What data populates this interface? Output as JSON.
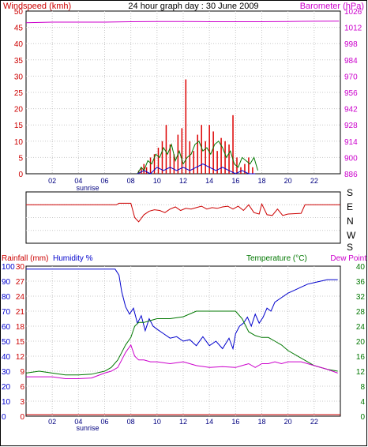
{
  "header": {
    "title": "24 hour graph day : 30 June 2009",
    "left_label": "Windspeed (kmh)",
    "right_label": "Barometer (hPa)",
    "left_color": "#cc0000",
    "right_color": "#cc00cc"
  },
  "wind_dir": {
    "labels": [
      "S",
      "E",
      "N",
      "W",
      "S"
    ],
    "color": "#cc0000"
  },
  "bottom_header": {
    "rainfall_label": "Rainfall (mm)",
    "humidity_label": "Humidity %",
    "temperature_label": "Temperature (°C)",
    "dewpoint_label": "Dew Point",
    "rain_color": "#cc0000",
    "humidity_color": "#0000cc",
    "temp_color": "#007700",
    "dew_color": "#cc00cc"
  },
  "chart_data": [
    {
      "id": "wind_baro",
      "type": "bar",
      "title": "24 hour graph day : 30 June 2009",
      "x_ticks": [
        "02",
        "04",
        "06",
        "08",
        "10",
        "12",
        "14",
        "16",
        "18",
        "20",
        "22"
      ],
      "x_sublabel": "sunrise",
      "y_left": {
        "label": "Windspeed (kmh)",
        "ticks": [
          "0",
          "5",
          "10",
          "15",
          "20",
          "25",
          "30",
          "35",
          "40",
          "45",
          "50"
        ],
        "ylim": [
          0,
          50
        ]
      },
      "y_right": {
        "label": "Barometer (hPa)",
        "ticks": [
          "886",
          "900",
          "914",
          "928",
          "942",
          "956",
          "970",
          "984",
          "998",
          "1012",
          "1026"
        ],
        "ylim": [
          886,
          1026
        ]
      },
      "series": [
        {
          "name": "Windspeed (kmh)",
          "type": "bar",
          "x": [
            8.6,
            8.8,
            9.0,
            9.2,
            9.5,
            9.8,
            10.1,
            10.4,
            10.7,
            11.0,
            11.3,
            11.6,
            11.9,
            12.2,
            12.5,
            12.8,
            13.1,
            13.4,
            13.7,
            14.0,
            14.3,
            14.6,
            14.9,
            15.2,
            15.5,
            15.8,
            16.1,
            16.4,
            16.7,
            17.0,
            17.3
          ],
          "values": [
            1,
            2,
            3,
            2,
            5,
            6,
            8,
            10,
            15,
            9,
            6,
            12,
            14,
            29,
            10,
            7,
            12,
            15,
            10,
            15,
            13,
            7,
            11,
            10,
            9,
            18,
            5,
            2,
            3,
            5,
            2
          ]
        },
        {
          "name": "Gust",
          "type": "line",
          "x": [
            8.5,
            8.8,
            9.0,
            9.3,
            9.6,
            9.9,
            10.2,
            10.5,
            10.8,
            11.1,
            11.4,
            11.7,
            12.0,
            12.3,
            12.6,
            12.9,
            13.2,
            13.5,
            13.8,
            14.1,
            14.4,
            14.7,
            15.0,
            15.3,
            15.6,
            15.9,
            16.2,
            16.5,
            16.8,
            17.1,
            17.4,
            17.7
          ],
          "values": [
            0,
            2,
            1,
            4,
            3,
            6,
            5,
            8,
            6,
            9,
            4,
            7,
            3,
            5,
            6,
            9,
            10,
            7,
            8,
            6,
            9,
            10,
            8,
            5,
            7,
            3,
            2,
            5,
            4,
            3,
            5,
            1
          ]
        },
        {
          "name": "Average",
          "type": "line",
          "x": [
            8.5,
            9.0,
            9.5,
            10.0,
            10.5,
            11.0,
            11.5,
            12.0,
            12.5,
            13.0,
            13.5,
            14.0,
            14.5,
            15.0,
            15.5,
            16.0,
            16.5,
            17.0,
            17.5
          ],
          "values": [
            0,
            1,
            0,
            2,
            1,
            2,
            1,
            2,
            1,
            2,
            3,
            2,
            1,
            2,
            1,
            0,
            1,
            0,
            0
          ]
        },
        {
          "name": "Barometer (hPa)",
          "type": "line",
          "x": [
            0,
            2,
            4,
            6,
            8,
            10,
            12,
            14,
            16,
            18,
            20,
            22,
            23.9
          ],
          "values": [
            1016,
            1016.5,
            1016.5,
            1016.5,
            1016.8,
            1017,
            1017,
            1016.8,
            1016.8,
            1016.8,
            1017,
            1017.2,
            1017.3
          ]
        }
      ]
    },
    {
      "id": "wind_direction",
      "type": "line",
      "x_ticks": [],
      "y_ticks": [
        "S",
        "E",
        "N",
        "W",
        "S"
      ],
      "series": [
        {
          "name": "Wind direction",
          "x": [
            0,
            6.9,
            7.1,
            8.0,
            8.3,
            8.6,
            9.0,
            9.4,
            9.8,
            10.2,
            10.6,
            11.0,
            11.4,
            11.8,
            12.2,
            12.6,
            13.0,
            13.4,
            13.8,
            14.2,
            14.6,
            15.0,
            15.4,
            15.8,
            16.2,
            16.6,
            17.0,
            17.4,
            17.8,
            18.0,
            18.4,
            18.8,
            19.2,
            19.6,
            20.0,
            21.0,
            21.3,
            24.0
          ],
          "values": [
            270,
            270,
            280,
            280,
            180,
            150,
            200,
            225,
            235,
            230,
            215,
            240,
            255,
            230,
            245,
            240,
            250,
            260,
            240,
            250,
            245,
            255,
            260,
            240,
            260,
            230,
            270,
            215,
            205,
            275,
            200,
            195,
            240,
            195,
            205,
            210,
            270,
            270
          ]
        }
      ]
    },
    {
      "id": "temp_hum_rain",
      "type": "line",
      "x_ticks": [
        "02",
        "04",
        "06",
        "08",
        "10",
        "12",
        "14",
        "16",
        "18",
        "20",
        "22"
      ],
      "x_sublabel": "sunrise",
      "y_left_rain": {
        "label": "Rainfall (mm)",
        "ticks": [
          "0",
          "3",
          "6",
          "9",
          "12",
          "15",
          "18",
          "21",
          "24",
          "27",
          "30"
        ],
        "ylim": [
          0,
          30
        ]
      },
      "y_left_humidity": {
        "label": "Humidity %",
        "ticks": [
          "0",
          "10",
          "20",
          "30",
          "40",
          "50",
          "60",
          "70",
          "80",
          "90",
          "100"
        ],
        "ylim": [
          0,
          100
        ]
      },
      "y_right_temp": {
        "label": "Temperature (°C)",
        "ticks": [
          "0",
          "4",
          "8",
          "12",
          "16",
          "20",
          "24",
          "28",
          "32",
          "36",
          "40"
        ],
        "ylim": [
          0,
          40
        ]
      },
      "series": [
        {
          "name": "Humidity %",
          "x": [
            0,
            1,
            2,
            3,
            4,
            5,
            6,
            6.8,
            7.1,
            7.3,
            7.6,
            7.9,
            8.2,
            8.5,
            8.8,
            9.1,
            9.4,
            9.7,
            10.0,
            10.5,
            11.0,
            11.5,
            12.0,
            12.5,
            13.0,
            13.5,
            14.0,
            14.5,
            15.0,
            15.5,
            15.8,
            16.0,
            16.3,
            16.6,
            16.9,
            17.2,
            17.5,
            17.8,
            18.1,
            18.4,
            18.7,
            19.0,
            19.5,
            20.0,
            20.5,
            21.0,
            21.5,
            22.0,
            22.5,
            23.0,
            23.8
          ],
          "values": [
            98,
            98,
            98,
            98,
            98,
            98,
            98,
            98,
            94,
            83,
            73,
            68,
            72,
            62,
            67,
            57,
            65,
            60,
            58,
            55,
            52,
            53,
            50,
            51,
            47,
            53,
            47,
            50,
            45,
            52,
            45,
            55,
            60,
            62,
            66,
            60,
            68,
            62,
            66,
            72,
            70,
            76,
            79,
            82,
            84,
            86,
            88,
            89,
            90,
            91,
            91
          ]
        },
        {
          "name": "Temperature (°C)",
          "x": [
            0,
            1,
            2,
            3,
            4,
            5,
            6,
            6.5,
            7.0,
            7.3,
            7.6,
            8.0,
            8.3,
            8.6,
            9.0,
            9.5,
            10,
            11,
            12,
            13,
            14,
            15,
            16,
            16.5,
            17,
            17.5,
            18,
            18.5,
            19,
            19.5,
            20,
            21,
            22,
            23,
            23.8
          ],
          "values": [
            11.5,
            12,
            11.5,
            11,
            11,
            11.2,
            12,
            13,
            15,
            17,
            19,
            21,
            24,
            25,
            25,
            25.5,
            26,
            26,
            26.5,
            28,
            28,
            28,
            28,
            26,
            22.5,
            21.5,
            21,
            21,
            20,
            19,
            17.5,
            15.5,
            13.5,
            12.5,
            12
          ]
        },
        {
          "name": "Dew Point",
          "x": [
            0,
            1,
            2,
            3,
            4,
            5,
            6,
            6.5,
            7.0,
            7.3,
            7.6,
            8.0,
            8.3,
            8.6,
            9.0,
            9.5,
            10,
            11,
            12,
            13,
            14,
            15,
            16,
            16.5,
            17,
            17.5,
            18,
            18.5,
            19,
            19.5,
            20,
            21,
            22,
            23,
            23.8
          ],
          "values": [
            10.5,
            10.5,
            10.5,
            10,
            10,
            10.2,
            11.5,
            12,
            13,
            15,
            17,
            19,
            16,
            15,
            15,
            14.5,
            14.5,
            14,
            14.5,
            13.5,
            13,
            13.2,
            13,
            13.5,
            14,
            13,
            14,
            14,
            14.5,
            14,
            14.5,
            14.5,
            13.5,
            12.5,
            11.5
          ]
        },
        {
          "name": "Rainfall (mm)",
          "x": [
            0,
            24
          ],
          "values": [
            0,
            0
          ]
        }
      ]
    }
  ]
}
